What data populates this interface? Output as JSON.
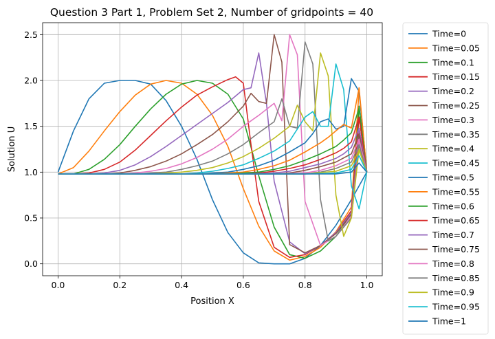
{
  "chart_data": {
    "type": "line",
    "title": "Question 3 Part 1, Problem Set 2, Number of gridpoints = 40",
    "xlabel": "Position X",
    "ylabel": "Solution U",
    "xlim": [
      -0.05,
      1.05
    ],
    "ylim": [
      -0.13,
      2.63
    ],
    "xticks": [
      0.0,
      0.2,
      0.4,
      0.6,
      0.8,
      1.0
    ],
    "xtick_labels": [
      "0.0",
      "0.2",
      "0.4",
      "0.6",
      "0.8",
      "1.0"
    ],
    "yticks": [
      0.0,
      0.5,
      1.0,
      1.5,
      2.0,
      2.5
    ],
    "ytick_labels": [
      "0.0",
      "0.5",
      "1.0",
      "1.5",
      "2.0",
      "2.5"
    ],
    "grid": true,
    "legend_position": "outside-right",
    "series": [
      {
        "name": "Time=0",
        "color": "#1f77b4",
        "x": [
          0.0,
          0.05,
          0.1,
          0.15,
          0.2,
          0.25,
          0.3,
          0.35,
          0.4,
          0.45,
          0.5,
          0.55,
          0.6,
          0.65,
          0.7,
          0.75,
          0.8,
          0.85,
          0.9,
          0.95,
          1.0
        ],
        "y": [
          1.0,
          1.45,
          1.8,
          1.97,
          2.0,
          2.0,
          1.96,
          1.78,
          1.5,
          1.14,
          0.7,
          0.34,
          0.12,
          0.01,
          0.0,
          0.0,
          0.06,
          0.2,
          0.42,
          0.7,
          1.0
        ]
      },
      {
        "name": "Time=0.05",
        "color": "#ff7f0e",
        "x": [
          0.0,
          0.05,
          0.1,
          0.15,
          0.2,
          0.25,
          0.3,
          0.35,
          0.4,
          0.45,
          0.5,
          0.55,
          0.6,
          0.65,
          0.7,
          0.75,
          0.8,
          0.85,
          0.9,
          0.95,
          0.975,
          1.0
        ],
        "y": [
          0.98,
          1.05,
          1.23,
          1.45,
          1.66,
          1.84,
          1.96,
          2.0,
          1.97,
          1.85,
          1.62,
          1.28,
          0.82,
          0.41,
          0.14,
          0.04,
          0.08,
          0.18,
          0.35,
          0.62,
          1.9,
          1.0
        ]
      },
      {
        "name": "Time=0.1",
        "color": "#2ca02c",
        "x": [
          0.0,
          0.05,
          0.1,
          0.15,
          0.2,
          0.25,
          0.3,
          0.35,
          0.4,
          0.45,
          0.5,
          0.55,
          0.6,
          0.65,
          0.7,
          0.75,
          0.8,
          0.85,
          0.9,
          0.95,
          0.975,
          1.0
        ],
        "y": [
          0.98,
          0.98,
          1.03,
          1.14,
          1.3,
          1.5,
          1.69,
          1.85,
          1.96,
          2.0,
          1.97,
          1.85,
          1.58,
          0.96,
          0.4,
          0.1,
          0.06,
          0.14,
          0.3,
          0.55,
          1.72,
          1.0
        ]
      },
      {
        "name": "Time=0.15",
        "color": "#d62728",
        "x": [
          0.0,
          0.05,
          0.1,
          0.15,
          0.2,
          0.25,
          0.3,
          0.35,
          0.4,
          0.45,
          0.5,
          0.55,
          0.575,
          0.6,
          0.625,
          0.65,
          0.7,
          0.75,
          0.8,
          0.85,
          0.9,
          0.95,
          0.975,
          1.0
        ],
        "y": [
          0.98,
          0.98,
          0.99,
          1.03,
          1.11,
          1.24,
          1.4,
          1.56,
          1.71,
          1.84,
          1.93,
          2.01,
          2.04,
          1.97,
          1.3,
          0.68,
          0.18,
          0.07,
          0.1,
          0.2,
          0.34,
          0.58,
          1.6,
          1.0
        ]
      },
      {
        "name": "Time=0.2",
        "color": "#9467bd",
        "x": [
          0.0,
          0.05,
          0.1,
          0.15,
          0.2,
          0.25,
          0.3,
          0.35,
          0.4,
          0.45,
          0.5,
          0.55,
          0.6,
          0.625,
          0.65,
          0.675,
          0.7,
          0.75,
          0.8,
          0.85,
          0.9,
          0.95,
          0.975,
          1.0
        ],
        "y": [
          0.98,
          0.98,
          0.98,
          0.99,
          1.02,
          1.08,
          1.17,
          1.28,
          1.4,
          1.52,
          1.64,
          1.76,
          1.9,
          1.92,
          2.3,
          1.75,
          0.9,
          0.24,
          0.11,
          0.2,
          0.34,
          0.56,
          1.45,
          1.0
        ]
      },
      {
        "name": "Time=0.25",
        "color": "#8c564b",
        "x": [
          0.0,
          0.05,
          0.1,
          0.15,
          0.2,
          0.25,
          0.3,
          0.35,
          0.4,
          0.45,
          0.5,
          0.55,
          0.6,
          0.625,
          0.65,
          0.675,
          0.7,
          0.725,
          0.75,
          0.8,
          0.85,
          0.9,
          0.95,
          0.975,
          1.0
        ],
        "y": [
          0.98,
          0.98,
          0.98,
          0.98,
          0.99,
          1.02,
          1.06,
          1.12,
          1.2,
          1.3,
          1.41,
          1.55,
          1.72,
          1.86,
          1.77,
          1.75,
          2.5,
          2.2,
          0.21,
          0.12,
          0.2,
          0.33,
          0.54,
          1.4,
          1.0
        ]
      },
      {
        "name": "Time=0.3",
        "color": "#e377c2",
        "x": [
          0.0,
          0.05,
          0.1,
          0.15,
          0.2,
          0.25,
          0.3,
          0.35,
          0.4,
          0.45,
          0.5,
          0.55,
          0.6,
          0.65,
          0.7,
          0.725,
          0.75,
          0.775,
          0.8,
          0.85,
          0.9,
          0.95,
          0.975,
          1.0
        ],
        "y": [
          0.98,
          0.98,
          0.98,
          0.98,
          0.98,
          0.99,
          1.01,
          1.04,
          1.09,
          1.16,
          1.25,
          1.36,
          1.5,
          1.62,
          1.75,
          1.56,
          2.5,
          2.28,
          0.68,
          0.2,
          0.3,
          0.52,
          1.35,
          1.0
        ]
      },
      {
        "name": "Time=0.35",
        "color": "#7f7f7f",
        "x": [
          0.0,
          0.05,
          0.1,
          0.15,
          0.2,
          0.25,
          0.3,
          0.35,
          0.4,
          0.45,
          0.5,
          0.55,
          0.6,
          0.65,
          0.7,
          0.725,
          0.75,
          0.775,
          0.8,
          0.825,
          0.85,
          0.875,
          0.9,
          0.95,
          0.975,
          1.0
        ],
        "y": [
          0.98,
          0.98,
          0.98,
          0.98,
          0.98,
          0.98,
          0.99,
          1.0,
          1.03,
          1.07,
          1.12,
          1.2,
          1.3,
          1.43,
          1.55,
          1.8,
          1.5,
          1.48,
          2.42,
          2.18,
          0.7,
          0.25,
          0.3,
          0.5,
          1.3,
          1.0
        ]
      },
      {
        "name": "Time=0.4",
        "color": "#bcbd22",
        "x": [
          0.0,
          0.05,
          0.1,
          0.15,
          0.2,
          0.25,
          0.3,
          0.35,
          0.4,
          0.45,
          0.5,
          0.55,
          0.6,
          0.65,
          0.7,
          0.75,
          0.775,
          0.8,
          0.825,
          0.85,
          0.875,
          0.9,
          0.925,
          0.95,
          0.975,
          1.0
        ],
        "y": [
          0.98,
          0.98,
          0.98,
          0.98,
          0.98,
          0.98,
          0.98,
          0.99,
          1.0,
          1.02,
          1.05,
          1.1,
          1.17,
          1.26,
          1.37,
          1.5,
          1.73,
          1.55,
          1.45,
          2.3,
          2.05,
          0.75,
          0.3,
          0.5,
          1.25,
          1.0
        ]
      },
      {
        "name": "Time=0.45",
        "color": "#17becf",
        "x": [
          0.0,
          0.05,
          0.1,
          0.15,
          0.2,
          0.25,
          0.3,
          0.35,
          0.4,
          0.45,
          0.5,
          0.55,
          0.6,
          0.65,
          0.7,
          0.75,
          0.8,
          0.825,
          0.85,
          0.875,
          0.9,
          0.925,
          0.95,
          0.975,
          1.0
        ],
        "y": [
          0.98,
          0.98,
          0.98,
          0.98,
          0.98,
          0.98,
          0.98,
          0.98,
          0.98,
          0.99,
          1.01,
          1.04,
          1.08,
          1.15,
          1.23,
          1.34,
          1.6,
          1.66,
          1.5,
          1.5,
          2.18,
          1.9,
          0.85,
          0.6,
          1.0
        ]
      },
      {
        "name": "Time=0.5",
        "color": "#1f77b4",
        "x": [
          0.0,
          0.05,
          0.1,
          0.15,
          0.2,
          0.25,
          0.3,
          0.35,
          0.4,
          0.45,
          0.5,
          0.55,
          0.6,
          0.65,
          0.7,
          0.75,
          0.8,
          0.825,
          0.85,
          0.875,
          0.9,
          0.925,
          0.95,
          0.975,
          1.0
        ],
        "y": [
          0.98,
          0.98,
          0.98,
          0.98,
          0.98,
          0.98,
          0.98,
          0.98,
          0.98,
          0.98,
          0.99,
          1.0,
          1.03,
          1.07,
          1.13,
          1.22,
          1.32,
          1.42,
          1.55,
          1.58,
          1.47,
          1.5,
          2.02,
          1.88,
          1.0
        ]
      },
      {
        "name": "Time=0.55",
        "color": "#ff7f0e",
        "x": [
          0.0,
          0.1,
          0.2,
          0.3,
          0.4,
          0.45,
          0.5,
          0.55,
          0.6,
          0.65,
          0.7,
          0.75,
          0.8,
          0.85,
          0.875,
          0.9,
          0.925,
          0.95,
          0.975,
          1.0
        ],
        "y": [
          0.98,
          0.98,
          0.98,
          0.98,
          0.98,
          0.98,
          0.98,
          0.99,
          1.0,
          1.03,
          1.07,
          1.13,
          1.22,
          1.32,
          1.38,
          1.45,
          1.52,
          1.48,
          1.92,
          1.0
        ]
      },
      {
        "name": "Time=0.6",
        "color": "#2ca02c",
        "x": [
          0.0,
          0.1,
          0.2,
          0.3,
          0.4,
          0.5,
          0.55,
          0.6,
          0.65,
          0.7,
          0.75,
          0.8,
          0.85,
          0.9,
          0.925,
          0.95,
          0.975,
          1.0
        ],
        "y": [
          0.98,
          0.98,
          0.98,
          0.98,
          0.98,
          0.98,
          0.98,
          0.99,
          1.0,
          1.03,
          1.07,
          1.13,
          1.2,
          1.28,
          1.35,
          1.43,
          1.7,
          1.0
        ]
      },
      {
        "name": "Time=0.65",
        "color": "#d62728",
        "x": [
          0.0,
          0.1,
          0.2,
          0.3,
          0.4,
          0.5,
          0.6,
          0.65,
          0.7,
          0.75,
          0.8,
          0.85,
          0.9,
          0.925,
          0.95,
          0.975,
          1.0
        ],
        "y": [
          0.98,
          0.98,
          0.98,
          0.98,
          0.98,
          0.98,
          0.98,
          0.99,
          1.01,
          1.04,
          1.08,
          1.14,
          1.21,
          1.26,
          1.33,
          1.6,
          1.0
        ]
      },
      {
        "name": "Time=0.7",
        "color": "#9467bd",
        "x": [
          0.0,
          0.1,
          0.2,
          0.3,
          0.4,
          0.5,
          0.6,
          0.7,
          0.75,
          0.8,
          0.85,
          0.9,
          0.925,
          0.95,
          0.975,
          1.0
        ],
        "y": [
          0.98,
          0.98,
          0.98,
          0.98,
          0.98,
          0.98,
          0.98,
          0.99,
          1.01,
          1.05,
          1.09,
          1.15,
          1.2,
          1.27,
          1.48,
          1.0
        ]
      },
      {
        "name": "Time=0.75",
        "color": "#8c564b",
        "x": [
          0.0,
          0.1,
          0.2,
          0.3,
          0.4,
          0.5,
          0.6,
          0.7,
          0.75,
          0.8,
          0.85,
          0.9,
          0.95,
          0.975,
          1.0
        ],
        "y": [
          0.98,
          0.98,
          0.98,
          0.98,
          0.98,
          0.98,
          0.98,
          0.98,
          0.99,
          1.02,
          1.06,
          1.11,
          1.2,
          1.42,
          1.0
        ]
      },
      {
        "name": "Time=0.8",
        "color": "#e377c2",
        "x": [
          0.0,
          0.1,
          0.2,
          0.3,
          0.4,
          0.5,
          0.6,
          0.7,
          0.8,
          0.85,
          0.9,
          0.95,
          0.975,
          1.0
        ],
        "y": [
          0.98,
          0.98,
          0.98,
          0.98,
          0.98,
          0.98,
          0.98,
          0.98,
          0.99,
          1.02,
          1.07,
          1.15,
          1.36,
          1.0
        ]
      },
      {
        "name": "Time=0.85",
        "color": "#7f7f7f",
        "x": [
          0.0,
          0.1,
          0.2,
          0.3,
          0.4,
          0.5,
          0.6,
          0.7,
          0.8,
          0.85,
          0.9,
          0.95,
          0.975,
          1.0
        ],
        "y": [
          0.98,
          0.98,
          0.98,
          0.98,
          0.98,
          0.98,
          0.98,
          0.98,
          0.98,
          1.0,
          1.04,
          1.11,
          1.3,
          1.0
        ]
      },
      {
        "name": "Time=0.9",
        "color": "#bcbd22",
        "x": [
          0.0,
          0.1,
          0.2,
          0.3,
          0.4,
          0.5,
          0.6,
          0.7,
          0.8,
          0.9,
          0.95,
          0.975,
          1.0
        ],
        "y": [
          0.98,
          0.98,
          0.98,
          0.98,
          0.98,
          0.98,
          0.98,
          0.98,
          0.98,
          1.01,
          1.07,
          1.24,
          1.0
        ]
      },
      {
        "name": "Time=0.95",
        "color": "#17becf",
        "x": [
          0.0,
          0.1,
          0.2,
          0.3,
          0.4,
          0.5,
          0.6,
          0.7,
          0.8,
          0.9,
          0.95,
          0.975,
          1.0
        ],
        "y": [
          0.98,
          0.98,
          0.98,
          0.98,
          0.98,
          0.98,
          0.98,
          0.98,
          0.98,
          0.99,
          1.03,
          1.18,
          1.0
        ]
      },
      {
        "name": "Time=1",
        "color": "#1f77b4",
        "x": [
          0.0,
          0.1,
          0.2,
          0.3,
          0.4,
          0.5,
          0.6,
          0.7,
          0.8,
          0.9,
          0.95,
          0.975,
          1.0
        ],
        "y": [
          0.98,
          0.98,
          0.98,
          0.98,
          0.98,
          0.98,
          0.98,
          0.98,
          0.98,
          0.98,
          1.0,
          1.1,
          1.0
        ]
      }
    ]
  }
}
